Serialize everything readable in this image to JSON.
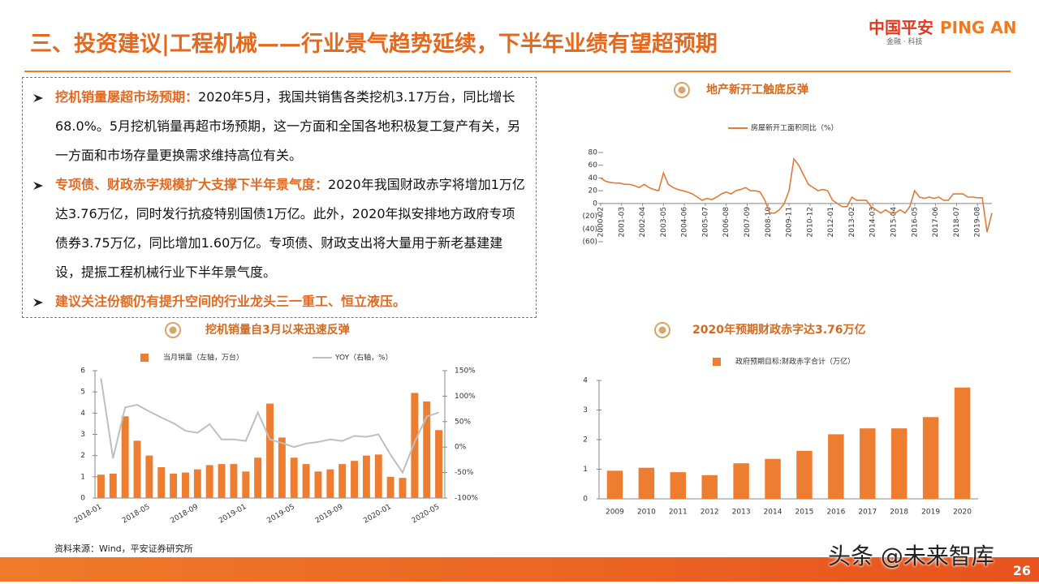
{
  "header": {
    "title": "三、投资建议|工程机械——行业景气趋势延续，下半年业绩有望超预期",
    "logo_cn": "中国平安",
    "logo_en": "PING AN",
    "tagline": "金融 · 科技"
  },
  "bullets": [
    {
      "lead": "挖机销量屡超市场预期：",
      "body": "2020年5月，我国共销售各类挖机3.17万台，同比增长68.0%。5月挖机销量再超市场预期，这一方面和全国各地积极复工复产有关，另一方面和市场存量更换需求维持高位有关。"
    },
    {
      "lead": "专项债、财政赤字规模扩大支撑下半年景气度：",
      "body": "2020年我国财政赤字将增加1万亿达3.76万亿，同时发行抗疫特别国债1万亿。此外，2020年拟安排地方政府专项债券3.75万亿，同比增加1.60万亿。专项债、财政支出将大量用于新老基建建设，提振工程机械行业下半年景气度。"
    },
    {
      "lead": "建议关注份额仍有提升空间的行业龙头三一重工、恒立液压。"
    }
  ],
  "chart_data": [
    {
      "type": "line",
      "title": "地产新开工触底反弹",
      "x": [
        "2000-02",
        "2000-05",
        "2000-08",
        "2000-11",
        "2001-02",
        "2001-05",
        "2001-08",
        "2001-11",
        "2002-02",
        "2002-05",
        "2002-08",
        "2002-11",
        "2003-02",
        "2003-05",
        "2003-08",
        "2003-11",
        "2004-02",
        "2004-05",
        "2004-08",
        "2004-11",
        "2005-02",
        "2005-05",
        "2005-08",
        "2005-11",
        "2006-02",
        "2006-05",
        "2006-08",
        "2006-11",
        "2007-02",
        "2007-05",
        "2007-08",
        "2007-11",
        "2008-02",
        "2008-05",
        "2008-08",
        "2008-11",
        "2009-02",
        "2009-05",
        "2009-08",
        "2009-11",
        "2010-02",
        "2010-05",
        "2010-08",
        "2010-11",
        "2011-02",
        "2011-05",
        "2011-08",
        "2011-11",
        "2012-02",
        "2012-05",
        "2012-08",
        "2012-11",
        "2013-02",
        "2013-05",
        "2013-08",
        "2013-11",
        "2014-02",
        "2014-05",
        "2014-08",
        "2014-11",
        "2015-02",
        "2015-05",
        "2015-08",
        "2015-11",
        "2016-02",
        "2016-05",
        "2016-08",
        "2016-11",
        "2017-02",
        "2017-05",
        "2017-08",
        "2017-11",
        "2018-02",
        "2018-05",
        "2018-08",
        "2018-11",
        "2019-02",
        "2019-05",
        "2019-08",
        "2019-11",
        "2020-02",
        "2020-05"
      ],
      "series": [
        {
          "name": "房屋新开工面积同比（%）",
          "color": "#E07B39",
          "values": [
            40,
            35,
            33,
            32,
            32,
            30,
            30,
            28,
            25,
            30,
            25,
            22,
            20,
            48,
            30,
            25,
            22,
            20,
            18,
            15,
            10,
            5,
            8,
            6,
            10,
            15,
            18,
            15,
            20,
            22,
            25,
            20,
            20,
            18,
            5,
            -15,
            -15,
            -10,
            0,
            20,
            70,
            60,
            45,
            30,
            25,
            20,
            22,
            20,
            5,
            0,
            -5,
            -5,
            10,
            5,
            5,
            5,
            -5,
            -10,
            -15,
            -10,
            -15,
            -15,
            -10,
            -15,
            -5,
            20,
            10,
            8,
            10,
            8,
            10,
            5,
            5,
            15,
            15,
            15,
            10,
            10,
            9,
            9,
            -45,
            -15
          ]
        }
      ],
      "xlim": [
        "2000-02",
        "2020-05"
      ],
      "xticks": [
        "2000-02",
        "2001-03",
        "2002-04",
        "2003-05",
        "2004-06",
        "2005-07",
        "2006-08",
        "2007-09",
        "2008-10",
        "2009-11",
        "2010-12",
        "2012-01",
        "2013-02",
        "2014-03",
        "2015-04",
        "2016-05",
        "2017-06",
        "2018-07",
        "2019-08"
      ],
      "ylim": [
        -60,
        80
      ],
      "yticks": [
        {
          "value": -60,
          "label": "(60)"
        },
        {
          "value": -40,
          "label": "(40)"
        },
        {
          "value": -20,
          "label": "(20)"
        },
        0,
        20,
        40,
        60,
        80
      ]
    },
    {
      "type": "combo",
      "title": "挖机销量自3月以来迅速反弹",
      "categories": [
        "2018-01",
        null,
        null,
        null,
        "2018-05",
        null,
        null,
        null,
        "2018-09",
        null,
        null,
        null,
        "2019-01",
        null,
        null,
        null,
        "2019-05",
        null,
        null,
        null,
        "2019-09",
        null,
        null,
        null,
        "2020-01",
        null,
        null,
        null,
        "2020-05"
      ],
      "series": [
        {
          "name": "当月销量（左轴，万台）",
          "color": "#ED7D31",
          "type": "bar",
          "values": [
            1.1,
            1.15,
            3.85,
            2.7,
            2.0,
            1.45,
            1.15,
            1.2,
            1.35,
            1.55,
            1.6,
            1.6,
            1.25,
            1.9,
            4.45,
            2.85,
            1.9,
            1.6,
            1.25,
            1.35,
            1.6,
            1.75,
            2.0,
            2.05,
            1.0,
            0.95,
            4.95,
            4.55,
            3.2
          ]
        },
        {
          "name": "YOY（右轴，%）",
          "color": "#BFBFBF",
          "type": "line",
          "axis": "y2",
          "values": [
            135,
            -22,
            78,
            83,
            70,
            58,
            47,
            32,
            28,
            45,
            15,
            15,
            12,
            68,
            15,
            8,
            0,
            7,
            10,
            15,
            12,
            22,
            20,
            25,
            -15,
            -50,
            10,
            60,
            68
          ]
        }
      ],
      "ylim": [
        0,
        6
      ],
      "yticks": [
        0,
        1,
        2,
        3,
        4,
        5,
        6
      ],
      "y2lim": [
        -100,
        150
      ],
      "y2ticks": [
        {
          "value": -100,
          "label": "-100%"
        },
        {
          "value": -50,
          "label": "-50%"
        },
        {
          "value": 0,
          "label": "0%"
        },
        {
          "value": 50,
          "label": "50%"
        },
        {
          "value": 100,
          "label": "100%"
        },
        {
          "value": 150,
          "label": "150%"
        }
      ]
    },
    {
      "type": "bar",
      "title": "2020年预期财政赤字达3.76万亿",
      "categories": [
        "2009",
        "2010",
        "2011",
        "2012",
        "2013",
        "2014",
        "2015",
        "2016",
        "2017",
        "2018",
        "2019",
        "2020"
      ],
      "series": [
        {
          "name": "政府预期目标:财政赤字合计（万亿）",
          "color": "#ED7D31",
          "values": [
            0.95,
            1.05,
            0.9,
            0.8,
            1.2,
            1.35,
            1.62,
            2.18,
            2.38,
            2.38,
            2.76,
            3.76
          ]
        }
      ],
      "ylim": [
        0,
        4
      ],
      "yticks": [
        0,
        1,
        2,
        3,
        4
      ]
    }
  ],
  "source": "资料来源：Wind，平安证券研究所",
  "page": "26",
  "watermark": "头条 @未来智库"
}
